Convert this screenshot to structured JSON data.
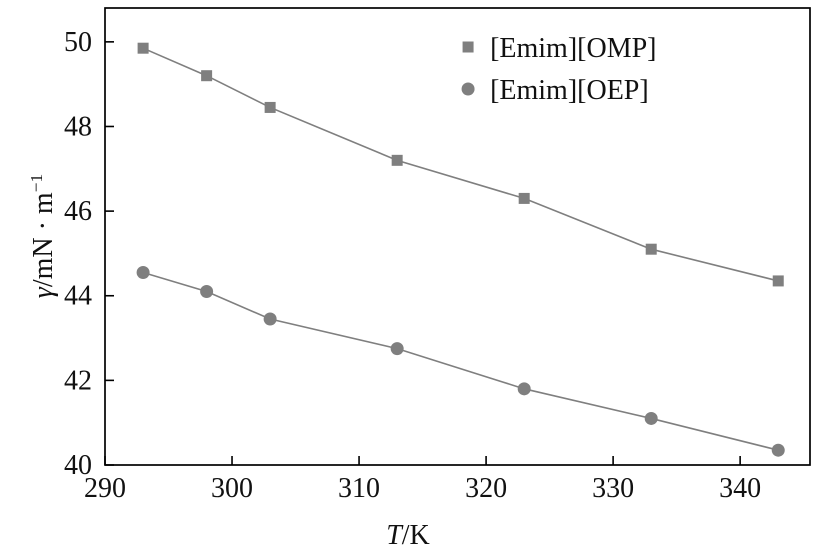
{
  "chart_data": {
    "type": "line",
    "title": "",
    "x": [
      293,
      298,
      303,
      313,
      323,
      333,
      343
    ],
    "series": [
      {
        "name": "[Emim][OMP]",
        "marker": "square",
        "values": [
          49.85,
          49.2,
          48.45,
          47.2,
          46.3,
          45.1,
          44.35
        ]
      },
      {
        "name": "[Emim][OEP]",
        "marker": "circle",
        "values": [
          44.55,
          44.1,
          43.45,
          42.75,
          41.8,
          41.1,
          40.35
        ]
      }
    ],
    "xlabel": "T/K",
    "ylabel": "γ/mN · m⁻¹",
    "xlim": [
      290,
      345.5
    ],
    "ylim": [
      40,
      50.8
    ],
    "x_ticks": [
      290,
      300,
      310,
      320,
      330,
      340
    ],
    "y_ticks": [
      40,
      42,
      44,
      46,
      48,
      50
    ],
    "grid": false,
    "legend_position": "top-right",
    "series_color": "#7f7f7f",
    "axis_color": "#000000"
  },
  "labels": {
    "xlabel_symbol": "T",
    "xlabel_rest": "/K",
    "ylabel_symbol": "γ",
    "ylabel_rest": "/mN · m",
    "ylabel_sup": "−1"
  }
}
